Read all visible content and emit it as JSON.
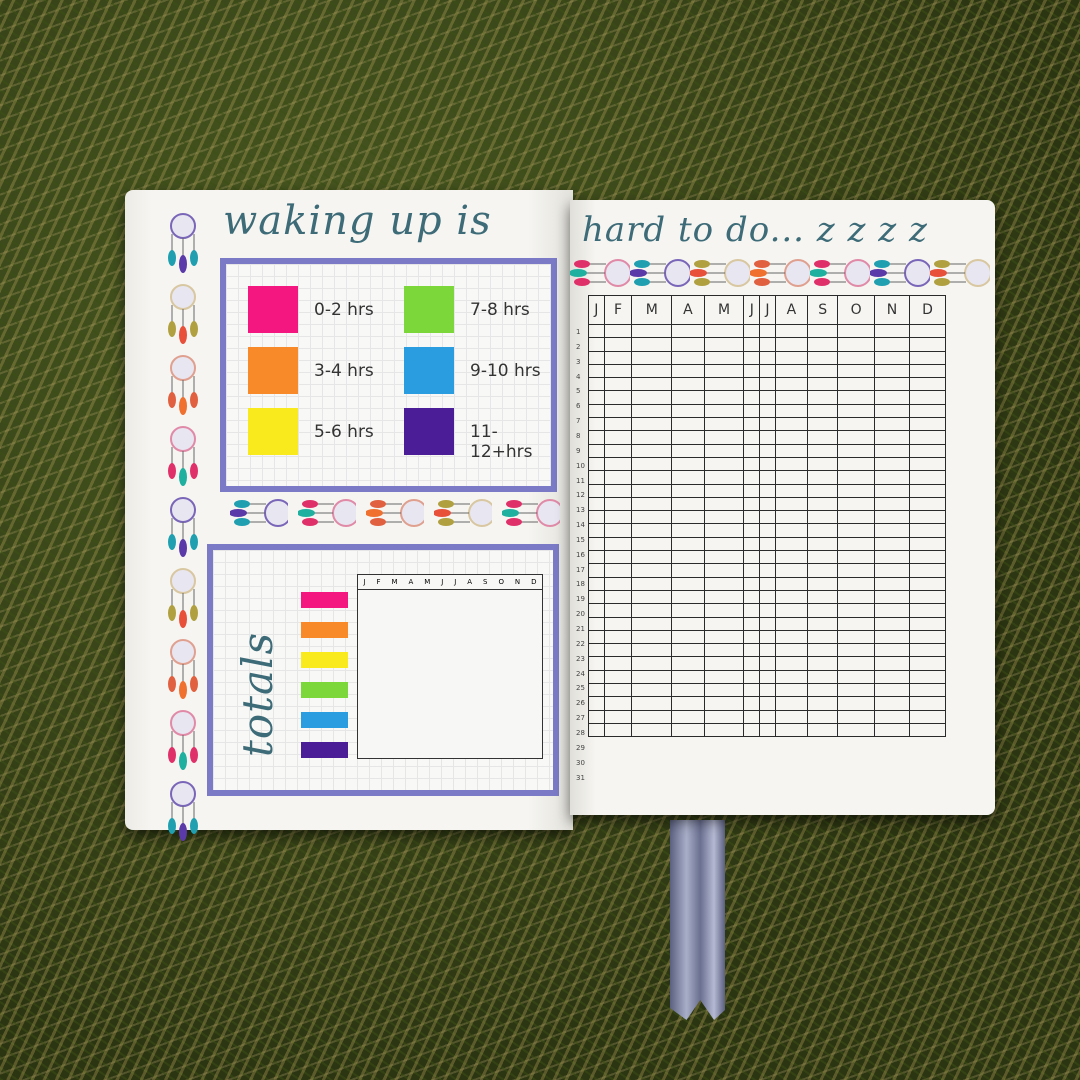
{
  "left_page": {
    "title": "waking up is",
    "legend": [
      {
        "label": "0-2 hrs",
        "color": "#f4177f"
      },
      {
        "label": "3-4 hrs",
        "color": "#f88a2a"
      },
      {
        "label": "5-6 hrs",
        "color": "#f8ea1c"
      },
      {
        "label": "7-8 hrs",
        "color": "#7cd83a"
      },
      {
        "label": "9-10 hrs",
        "color": "#2a9de0"
      },
      {
        "label": "11-12+hrs",
        "color": "#4b1d96"
      }
    ],
    "totals": {
      "label": "totals",
      "months": [
        "J",
        "F",
        "M",
        "A",
        "M",
        "J",
        "J",
        "A",
        "S",
        "O",
        "N",
        "D"
      ]
    }
  },
  "right_page": {
    "title": "hard to do... z z z z",
    "tracker": {
      "months": [
        "J",
        "F",
        "M",
        "A",
        "M",
        "J",
        "J",
        "A",
        "S",
        "O",
        "N",
        "D"
      ],
      "days": [
        "1",
        "2",
        "3",
        "4",
        "5",
        "6",
        "7",
        "8",
        "9",
        "10",
        "11",
        "12",
        "13",
        "14",
        "15",
        "16",
        "17",
        "18",
        "19",
        "20",
        "21",
        "22",
        "23",
        "24",
        "25",
        "26",
        "27",
        "28",
        "29",
        "30",
        "31"
      ]
    }
  },
  "colors": {
    "border_purple": "#7b7ac6",
    "title_teal": "#3d6b78"
  },
  "decorations": {
    "icon": "dreamcatcher-icon"
  }
}
